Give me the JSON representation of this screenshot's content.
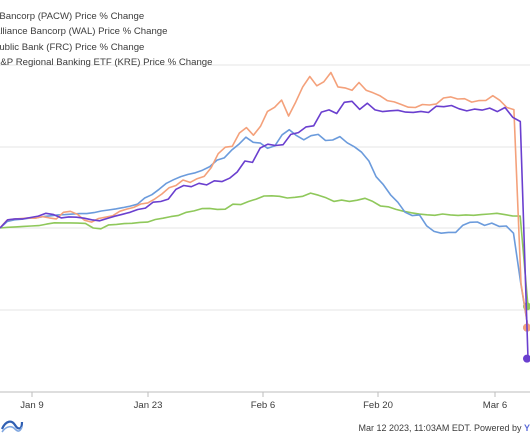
{
  "chart_data": {
    "type": "line",
    "x_ticks": [
      "Jan 9",
      "Jan 23",
      "Feb 6",
      "Feb 20",
      "Mar 6"
    ],
    "grid": "horizontal",
    "legend_position": "top-left",
    "series": [
      {
        "name": "PacWest Bancorp (PACW) Price % Change",
        "legend_label": "t Bancorp (PACW) Price % Change",
        "color": "#f4a17b",
        "values": [
          0.0,
          4.8,
          5.5,
          5.8,
          6.2,
          6.0,
          7.0,
          6.2,
          5.6,
          9.6,
          10.2,
          8.4,
          4.8,
          3.6,
          5.8,
          6.6,
          7.5,
          10.2,
          11.6,
          12.6,
          14.7,
          15.4,
          17.8,
          20.8,
          24.6,
          26.0,
          29.4,
          27.9,
          30.2,
          31.6,
          37.0,
          45.5,
          49.5,
          50.0,
          58.2,
          61.5,
          56.8,
          62.3,
          71.4,
          73.9,
          78.3,
          68.6,
          77.1,
          86.4,
          92.8,
          87.1,
          89.5,
          95.2,
          86.4,
          85.8,
          84.3,
          89.1,
          84.4,
          82.8,
          80.9,
          78.0,
          77.2,
          75.6,
          74.0,
          73.8,
          75.6,
          75.3,
          76.0,
          79.6,
          80.3,
          79.0,
          79.2,
          77.1,
          78.0,
          78.1,
          81.0,
          78.2,
          73.8,
          72.5,
          -34.0,
          -61.0
        ]
      },
      {
        "name": "Western Alliance Bancorp (WAL) Price % Change",
        "legend_label": "Alliance Bancorp (WAL) Price % Change",
        "color": "#6b9bdc",
        "values": [
          0.0,
          4.0,
          5.0,
          5.4,
          6.0,
          6.2,
          7.0,
          7.5,
          8.0,
          8.2,
          8.5,
          8.8,
          8.8,
          9.4,
          10.4,
          11.0,
          11.7,
          12.5,
          13.4,
          14.6,
          18.4,
          20.4,
          23.7,
          27.4,
          29.6,
          31.5,
          32.8,
          33.8,
          35.4,
          37.6,
          41.6,
          42.9,
          47.6,
          51.2,
          55.6,
          52.5,
          52.0,
          48.8,
          50.3,
          57.1,
          60.2,
          56.6,
          54.0,
          56.5,
          57.3,
          53.6,
          53.9,
          56.0,
          52.2,
          49.7,
          46.4,
          41.0,
          31.4,
          26.6,
          20.3,
          15.8,
          9.7,
          7.6,
          8.0,
          1.3,
          -2.1,
          -3.2,
          -2.7,
          -2.7,
          1.7,
          3.5,
          3.7,
          1.6,
          3.0,
          1.0,
          1.2,
          -3.2,
          -34.0,
          -61.0
        ]
      },
      {
        "name": "First Republic Bank (FRC) Price % Change",
        "legend_label": "oublic Bank (FRC) Price % Change",
        "color": "#8fc85b",
        "values": [
          0.0,
          0.4,
          0.7,
          1.0,
          1.2,
          1.5,
          2.4,
          3.2,
          3.1,
          3.1,
          3.0,
          2.8,
          0.0,
          -0.5,
          1.9,
          2.2,
          2.7,
          2.9,
          3.4,
          3.6,
          5.2,
          6.0,
          7.0,
          7.7,
          9.6,
          10.5,
          11.9,
          12.0,
          11.4,
          11.5,
          14.6,
          14.3,
          16.2,
          17.7,
          19.6,
          19.7,
          19.4,
          18.4,
          18.8,
          19.4,
          21.4,
          20.1,
          18.5,
          16.3,
          17.1,
          16.3,
          17.0,
          18.2,
          16.3,
          13.5,
          13.0,
          11.4,
          10.2,
          9.3,
          8.5,
          8.1,
          7.8,
          8.6,
          8.0,
          7.7,
          8.0,
          7.8,
          8.2,
          8.6,
          9.0,
          8.2,
          7.4,
          7.3,
          -48.0
        ]
      },
      {
        "name": "SPDR S&P Regional Banking ETF (KRE) Price % Change",
        "legend_label": "S&P Regional Banking ETF (KRE) Price % Change",
        "color": "#6a3fcf",
        "values": [
          0.0,
          5.0,
          5.6,
          5.6,
          6.4,
          7.3,
          9.0,
          8.2,
          6.2,
          6.8,
          6.6,
          6.0,
          5.0,
          4.4,
          5.8,
          7.2,
          8.4,
          9.6,
          11.3,
          12.2,
          15.8,
          16.2,
          17.7,
          23.7,
          26.0,
          25.3,
          27.4,
          26.4,
          28.9,
          28.4,
          30.5,
          34.3,
          41.0,
          40.2,
          49.0,
          51.3,
          50.5,
          51.0,
          57.3,
          58.4,
          61.9,
          62.6,
          71.0,
          72.3,
          70.1,
          77.0,
          77.6,
          72.6,
          76.4,
          72.3,
          71.3,
          71.8,
          72.1,
          71.0,
          70.8,
          71.4,
          70.7,
          74.6,
          74.3,
          75.0,
          73.0,
          71.7,
          72.8,
          72.2,
          73.4,
          71.3,
          73.8,
          67.8,
          65.2,
          -80.0
        ]
      }
    ]
  },
  "footer": {
    "timestamp": "Mar 12 2023, 11:03AM EDT.",
    "powered": "Powered by",
    "brand": "Y"
  }
}
